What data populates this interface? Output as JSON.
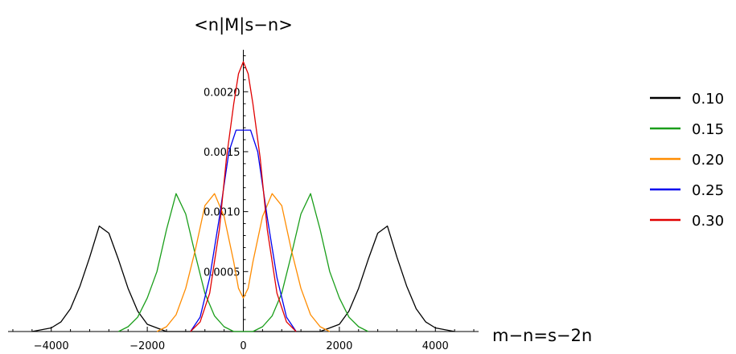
{
  "chart_data": {
    "type": "line",
    "title": "",
    "xlabel": "m−n=s−2n",
    "ylabel": "<n|M|s−n>",
    "xlim": [
      -4900,
      4900
    ],
    "ylim": [
      0,
      0.00235
    ],
    "x_ticks": [
      -4000,
      -2000,
      0,
      2000,
      4000
    ],
    "x_tick_labels": [
      "−4000",
      "−2000",
      "0",
      "2000",
      "4000"
    ],
    "y_ticks": [
      0.0005,
      0.001,
      0.0015,
      0.002
    ],
    "y_tick_labels": [
      "0.0005",
      "0.0010",
      "0.0015",
      "0.0020"
    ],
    "grid": false,
    "legend_position": "right",
    "series": [
      {
        "name": "0.10",
        "color": "#000000",
        "x": [
          -4400,
          -4000,
          -3800,
          -3600,
          -3400,
          -3200,
          -3000,
          -2800,
          -2600,
          -2400,
          -2200,
          -2000,
          -1600,
          1600,
          2000,
          2200,
          2400,
          2600,
          2800,
          3000,
          3200,
          3400,
          3600,
          3800,
          4000,
          4400
        ],
        "y": [
          0,
          3e-05,
          8e-05,
          0.00019,
          0.00038,
          0.00062,
          0.00088,
          0.00082,
          0.0006,
          0.00036,
          0.00017,
          6e-05,
          0,
          0,
          6e-05,
          0.00017,
          0.00036,
          0.0006,
          0.00082,
          0.00088,
          0.00062,
          0.00038,
          0.00019,
          8e-05,
          3e-05,
          0
        ]
      },
      {
        "name": "0.15",
        "color": "#1a9e1a",
        "x": [
          -2600,
          -2400,
          -2200,
          -2000,
          -1800,
          -1600,
          -1400,
          -1200,
          -1000,
          -800,
          -600,
          -400,
          -200,
          200,
          400,
          600,
          800,
          1000,
          1200,
          1400,
          1600,
          1800,
          2000,
          2200,
          2400,
          2600
        ],
        "y": [
          0,
          4e-05,
          0.00012,
          0.00028,
          0.0005,
          0.00085,
          0.00115,
          0.00098,
          0.00064,
          0.00032,
          0.00013,
          4e-05,
          0,
          0,
          4e-05,
          0.00013,
          0.00032,
          0.00064,
          0.00098,
          0.00115,
          0.00085,
          0.0005,
          0.00028,
          0.00012,
          4e-05,
          0
        ]
      },
      {
        "name": "0.20",
        "color": "#ff8c00",
        "x": [
          -1800,
          -1600,
          -1400,
          -1200,
          -1000,
          -800,
          -600,
          -400,
          -200,
          -100,
          0,
          100,
          200,
          400,
          600,
          800,
          1000,
          1200,
          1400,
          1600,
          1800
        ],
        "y": [
          0,
          4e-05,
          0.00014,
          0.00036,
          0.00068,
          0.00105,
          0.00115,
          0.00096,
          0.00058,
          0.00036,
          0.00028,
          0.00036,
          0.00058,
          0.00096,
          0.00115,
          0.00105,
          0.00068,
          0.00036,
          0.00014,
          4e-05,
          0
        ]
      },
      {
        "name": "0.25",
        "color": "#0000ee",
        "x": [
          -1100,
          -900,
          -700,
          -500,
          -300,
          -150,
          0,
          150,
          300,
          500,
          700,
          900,
          1100
        ],
        "y": [
          0,
          0.00012,
          0.00045,
          0.00095,
          0.0015,
          0.00168,
          0.00168,
          0.00168,
          0.0015,
          0.00095,
          0.00045,
          0.00012,
          0
        ]
      },
      {
        "name": "0.30",
        "color": "#e00000",
        "x": [
          -1100,
          -900,
          -700,
          -500,
          -350,
          -200,
          -100,
          0,
          100,
          200,
          350,
          500,
          700,
          900,
          1100
        ],
        "y": [
          0,
          8e-05,
          0.00032,
          0.00085,
          0.00145,
          0.0019,
          0.00215,
          0.00225,
          0.00215,
          0.0019,
          0.00145,
          0.00085,
          0.00032,
          8e-05,
          0
        ]
      }
    ]
  }
}
